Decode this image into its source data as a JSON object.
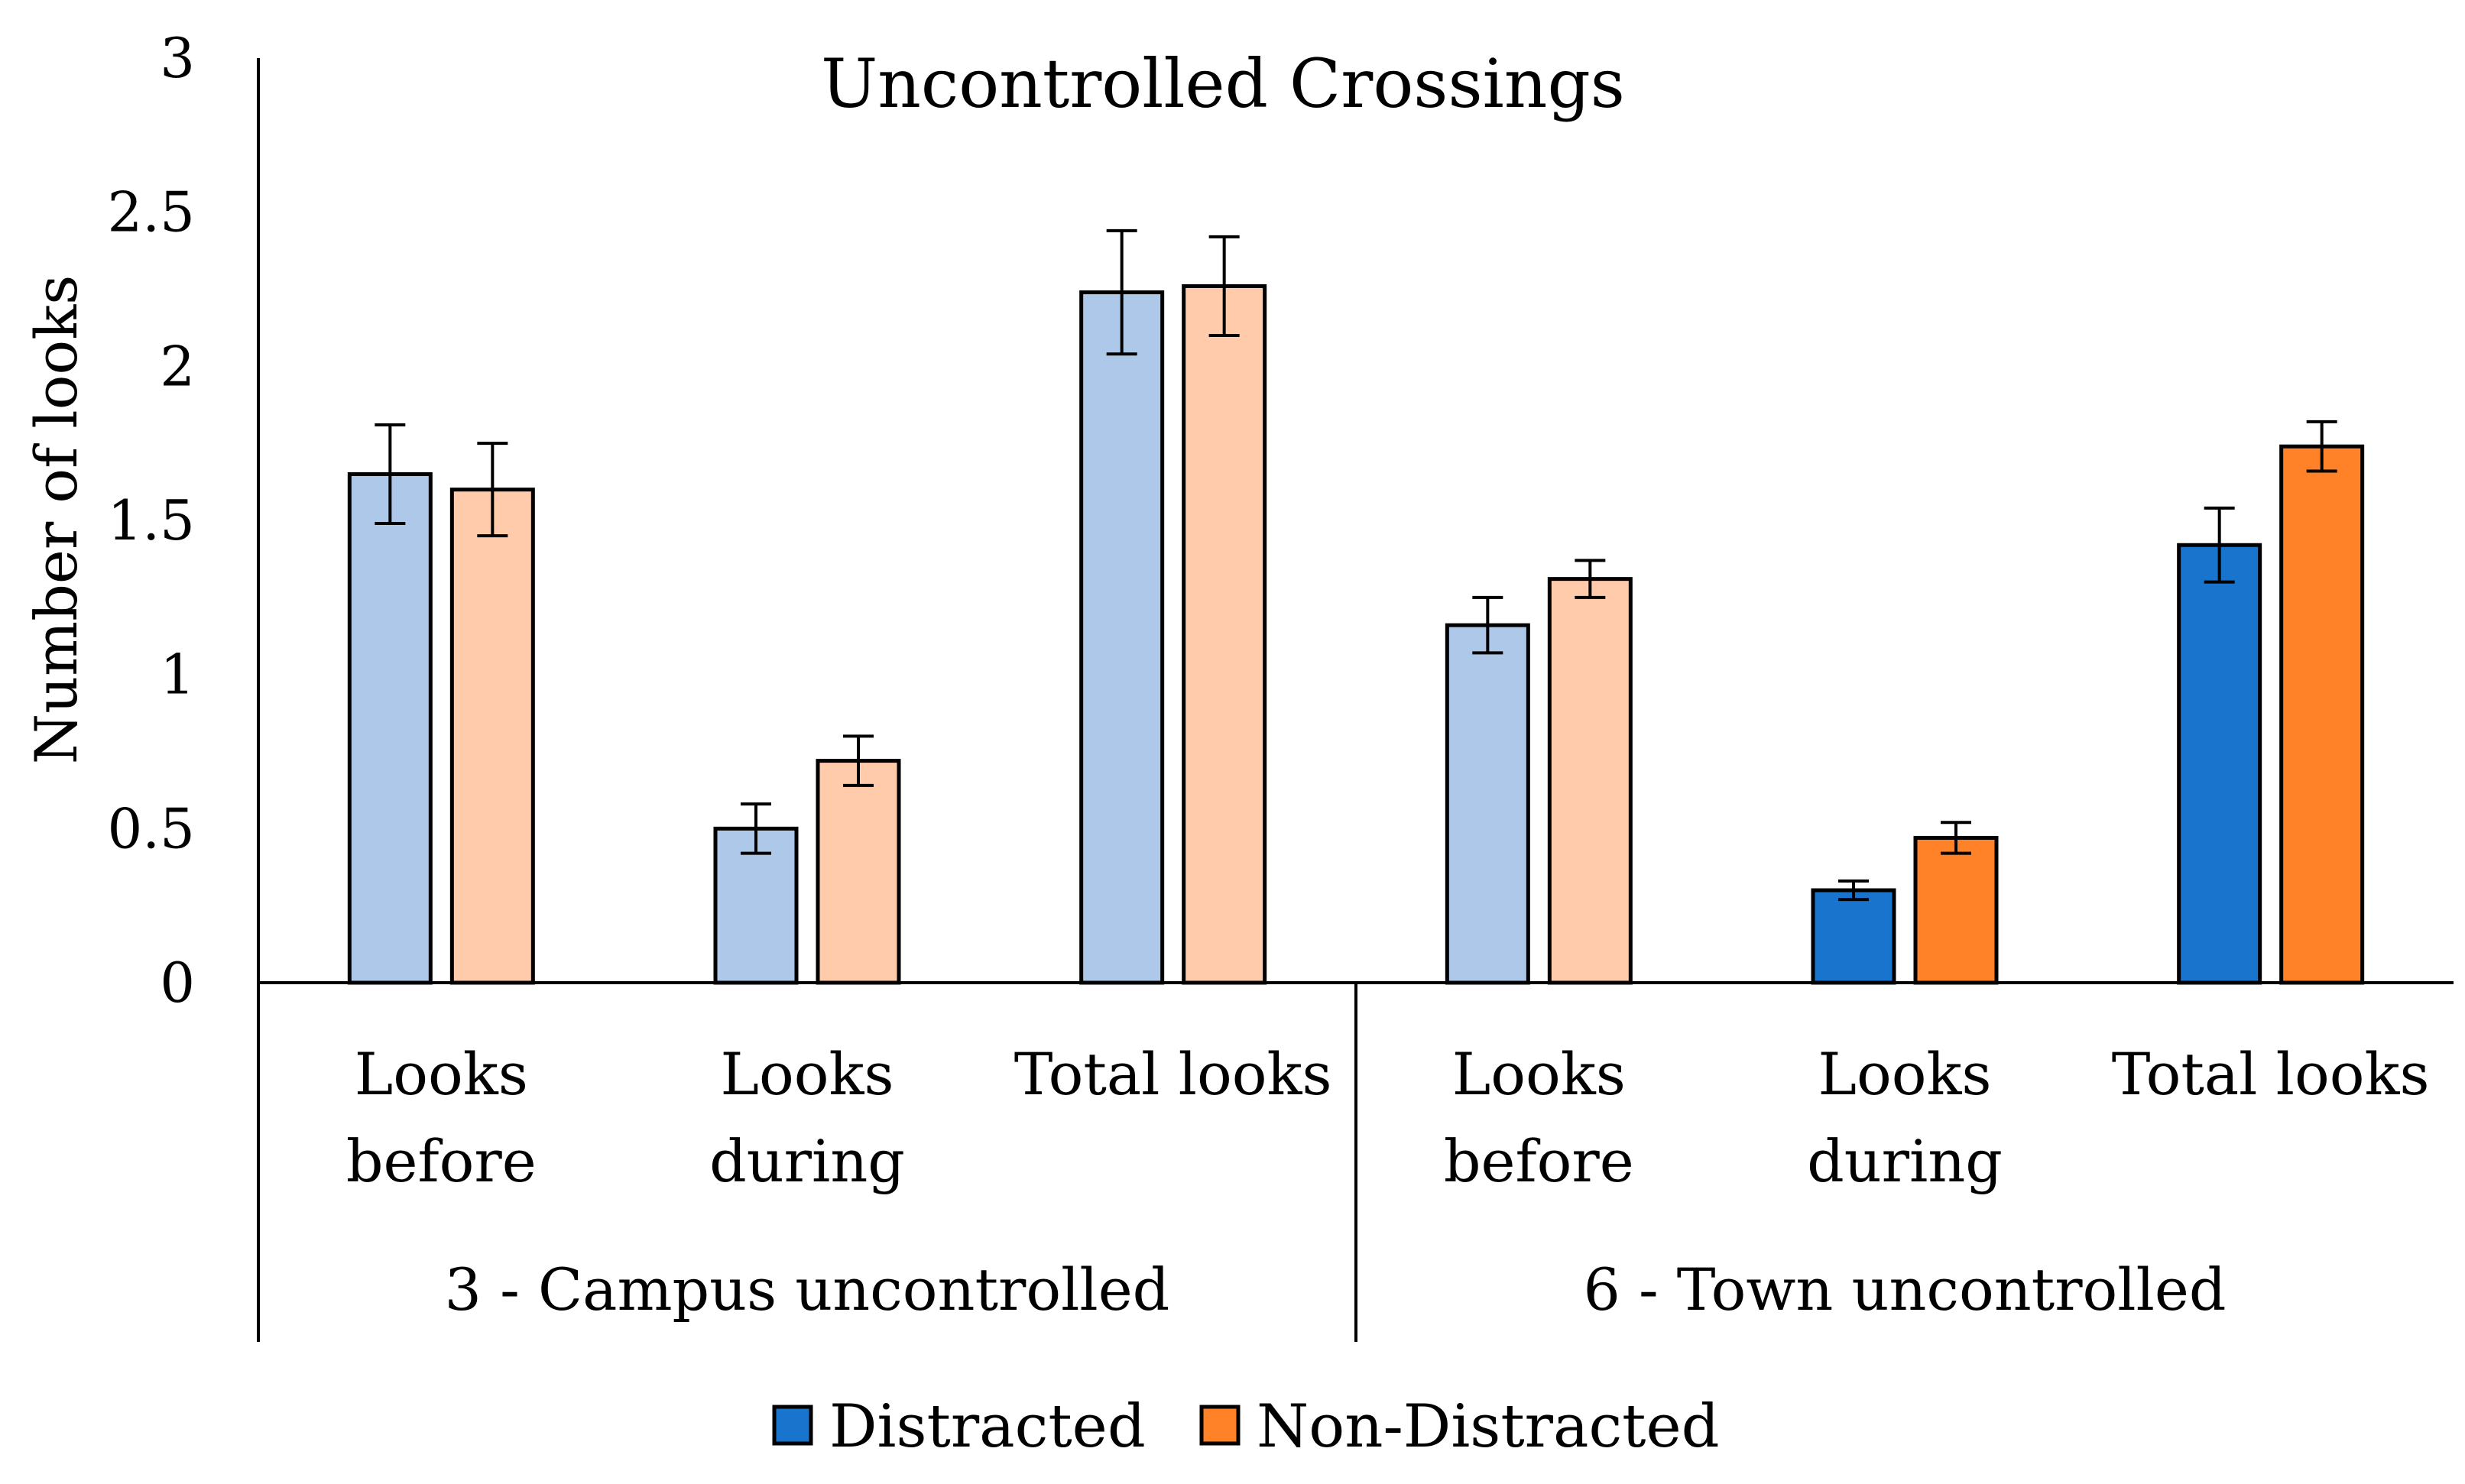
{
  "chart_data": {
    "type": "bar",
    "title": "Uncontrolled Crossings",
    "xlabel": "",
    "ylabel": "Number of looks",
    "ylim": [
      0,
      3
    ],
    "yticks": [
      "0",
      "0.5",
      "1",
      "1.5",
      "2",
      "2.5",
      "3"
    ],
    "grid": false,
    "legend_position": "bottom-center",
    "groups": [
      {
        "label": "3 - Campus uncontrolled",
        "categories": [
          {
            "label_lines": [
              "Looks",
              "before"
            ],
            "distracted": 1.65,
            "distracted_err": 0.16,
            "non_distracted": 1.6,
            "non_distracted_err": 0.15,
            "faded": true
          },
          {
            "label_lines": [
              "Looks",
              "during"
            ],
            "distracted": 0.5,
            "distracted_err": 0.08,
            "non_distracted": 0.72,
            "non_distracted_err": 0.08,
            "faded": true
          },
          {
            "label_lines": [
              "Total looks"
            ],
            "distracted": 2.24,
            "distracted_err": 0.2,
            "non_distracted": 2.26,
            "non_distracted_err": 0.16,
            "faded": true
          }
        ]
      },
      {
        "label": "6 - Town uncontrolled",
        "categories": [
          {
            "label_lines": [
              "Looks",
              "before"
            ],
            "distracted": 1.16,
            "distracted_err": 0.09,
            "non_distracted": 1.31,
            "non_distracted_err": 0.06,
            "faded": true
          },
          {
            "label_lines": [
              "Looks",
              "during"
            ],
            "distracted": 0.3,
            "distracted_err": 0.03,
            "non_distracted": 0.47,
            "non_distracted_err": 0.05,
            "faded": false
          },
          {
            "label_lines": [
              "Total looks"
            ],
            "distracted": 1.42,
            "distracted_err": 0.12,
            "non_distracted": 1.74,
            "non_distracted_err": 0.08,
            "faded": false
          }
        ]
      }
    ],
    "series": [
      {
        "name": "Distracted",
        "color": "#1874CD",
        "faded_color": "#AEC8EA"
      },
      {
        "name": "Non-Distracted",
        "color": "#FF8128",
        "faded_color": "#FFCBAA"
      }
    ]
  }
}
